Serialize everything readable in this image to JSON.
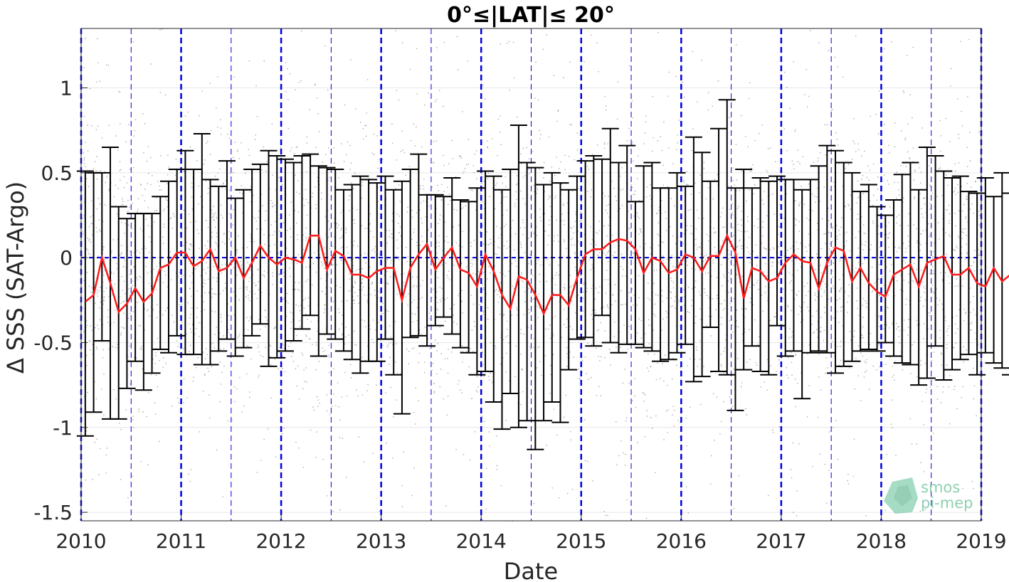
{
  "chart_data": {
    "type": "line",
    "title": "0°≤|LAT|≤ 20°",
    "xlabel": "Date",
    "ylabel": "Δ SSS (SAT-Argo)",
    "xlim": [
      2010,
      2019
    ],
    "ylim": [
      -1.55,
      1.35
    ],
    "x_ticks": [
      "2010",
      "2011",
      "2012",
      "2013",
      "2014",
      "2015",
      "2016",
      "2017",
      "2018",
      "2019"
    ],
    "y_ticks": [
      {
        "value": 1,
        "label": "1"
      },
      {
        "value": 0.5,
        "label": "0.5"
      },
      {
        "value": 0,
        "label": "0"
      },
      {
        "value": -0.5,
        "label": "-0.5"
      },
      {
        "value": -1,
        "label": "-1"
      },
      {
        "value": -1.5,
        "label": "-1.5"
      }
    ],
    "grid": true,
    "reference_lines": {
      "horizontal_zero": true,
      "year_starts_thick_dashed": true,
      "mid_year_thin_dashed": true
    },
    "series": [
      {
        "style": "line",
        "x_start": 2010,
        "x_step_months": 1,
        "values": [
          -0.26,
          -0.22,
          0.0,
          -0.15,
          -0.32,
          -0.27,
          -0.18,
          -0.26,
          -0.21,
          -0.06,
          -0.04,
          0.03,
          0.03,
          -0.05,
          -0.02,
          0.05,
          -0.08,
          -0.06,
          0.0,
          -0.12,
          -0.03,
          0.07,
          0.0,
          -0.04,
          0.0,
          -0.01,
          -0.03,
          0.13,
          0.13,
          -0.07,
          0.04,
          0.01,
          -0.1,
          -0.1,
          -0.12,
          -0.08,
          -0.06,
          -0.06,
          -0.25,
          -0.06,
          0.02,
          0.08,
          -0.07,
          0.0,
          0.06,
          -0.07,
          -0.09,
          -0.17,
          0.02,
          -0.08,
          -0.22,
          -0.3,
          -0.11,
          -0.13,
          -0.22,
          -0.33,
          -0.22,
          -0.22,
          -0.28,
          -0.12,
          0.02,
          0.05,
          0.05,
          0.09,
          0.11,
          0.1,
          0.05,
          -0.09,
          0.0,
          -0.02,
          -0.09,
          -0.07,
          0.02,
          0.0,
          -0.08,
          0.01,
          0.01,
          0.13,
          0.03,
          -0.24,
          -0.06,
          -0.08,
          -0.14,
          -0.12,
          -0.03,
          0.02,
          -0.02,
          -0.03,
          -0.18,
          -0.03,
          0.06,
          0.04,
          -0.14,
          -0.06,
          -0.15,
          -0.2,
          -0.23,
          -0.1,
          -0.07,
          -0.04,
          -0.17,
          -0.03,
          -0.01,
          0.01,
          -0.1,
          -0.1,
          -0.06,
          -0.15,
          -0.17,
          -0.06,
          -0.14,
          -0.1,
          -0.15
        ]
      },
      {
        "style": "errorbar",
        "upper": [
          0.51,
          0.5,
          0.5,
          0.65,
          0.3,
          0.23,
          0.26,
          0.26,
          0.26,
          0.36,
          0.45,
          0.52,
          0.63,
          0.52,
          0.73,
          0.46,
          0.42,
          0.57,
          0.35,
          0.4,
          0.52,
          0.55,
          0.63,
          0.6,
          0.58,
          0.56,
          0.6,
          0.61,
          0.54,
          0.53,
          0.52,
          0.4,
          0.43,
          0.48,
          0.46,
          0.44,
          0.48,
          0.4,
          0.45,
          0.52,
          0.61,
          0.37,
          0.37,
          0.36,
          0.47,
          0.34,
          0.33,
          0.41,
          0.51,
          0.48,
          0.4,
          0.52,
          0.78,
          0.56,
          0.53,
          0.43,
          0.5,
          0.44,
          0.4,
          0.48,
          0.57,
          0.6,
          0.58,
          0.76,
          0.56,
          0.66,
          0.33,
          0.54,
          0.56,
          0.41,
          0.41,
          0.5,
          0.42,
          0.71,
          0.62,
          0.45,
          0.76,
          0.93,
          0.41,
          0.52,
          0.41,
          0.47,
          0.45,
          0.48,
          0.46,
          0.46,
          0.4,
          0.46,
          0.54,
          0.66,
          0.63,
          0.56,
          0.5,
          0.39,
          0.43,
          0.3,
          0.25,
          0.34,
          0.49,
          0.56,
          0.4,
          0.65,
          0.6,
          0.51,
          0.47,
          0.48,
          0.39,
          0.38,
          0.47,
          0.36,
          0.5,
          0.38,
          0.45
        ],
        "lower": [
          -1.05,
          -0.91,
          -0.49,
          -0.95,
          -0.95,
          -0.77,
          -0.61,
          -0.78,
          -0.68,
          -0.54,
          -0.56,
          -0.46,
          -0.57,
          -0.57,
          -0.63,
          -0.63,
          -0.55,
          -0.48,
          -0.58,
          -0.53,
          -0.46,
          -0.39,
          -0.64,
          -0.59,
          -0.55,
          -0.49,
          -0.42,
          -0.34,
          -0.58,
          -0.45,
          -0.48,
          -0.55,
          -0.6,
          -0.68,
          -0.61,
          -0.61,
          -0.48,
          -0.69,
          -0.92,
          -0.47,
          -0.46,
          -0.52,
          -0.4,
          -0.35,
          -0.45,
          -0.53,
          -0.56,
          -0.69,
          -0.67,
          -0.85,
          -1.01,
          -0.8,
          -1.0,
          -0.96,
          -1.13,
          -0.96,
          -0.85,
          -0.97,
          -0.66,
          -0.48,
          -0.47,
          -0.52,
          -0.34,
          -0.5,
          -0.56,
          -0.51,
          -0.51,
          -0.53,
          -0.55,
          -0.61,
          -0.6,
          -0.56,
          -0.51,
          -0.73,
          -0.7,
          -0.41,
          -0.67,
          -0.69,
          -0.9,
          -0.66,
          -0.52,
          -0.67,
          -0.69,
          -0.4,
          -0.58,
          -0.55,
          -0.83,
          -0.56,
          -0.55,
          -0.56,
          -0.68,
          -0.64,
          -0.61,
          -0.55,
          -0.54,
          -0.55,
          -0.5,
          -0.58,
          -0.62,
          -0.63,
          -0.75,
          -0.71,
          -0.52,
          -0.72,
          -0.66,
          -0.6,
          -0.57,
          -0.69,
          -0.56,
          -0.62,
          -0.65,
          -0.69,
          -0.75
        ]
      }
    ],
    "scatter_background": {
      "count": 9000,
      "x_range": [
        2010,
        2019
      ],
      "y_center": -0.05,
      "y_spread": 0.42
    },
    "colors": {
      "mean_line": "#ff1a1a",
      "error_bars": "#000000",
      "scatter": "#8c8c8c",
      "reference_lines": "#0000e6",
      "grid": "#e6e6e6"
    }
  },
  "logo": {
    "line1": "smos",
    "line2": "pi-mep",
    "icon": "map-tile-icon",
    "color": "#8fd0b0"
  }
}
